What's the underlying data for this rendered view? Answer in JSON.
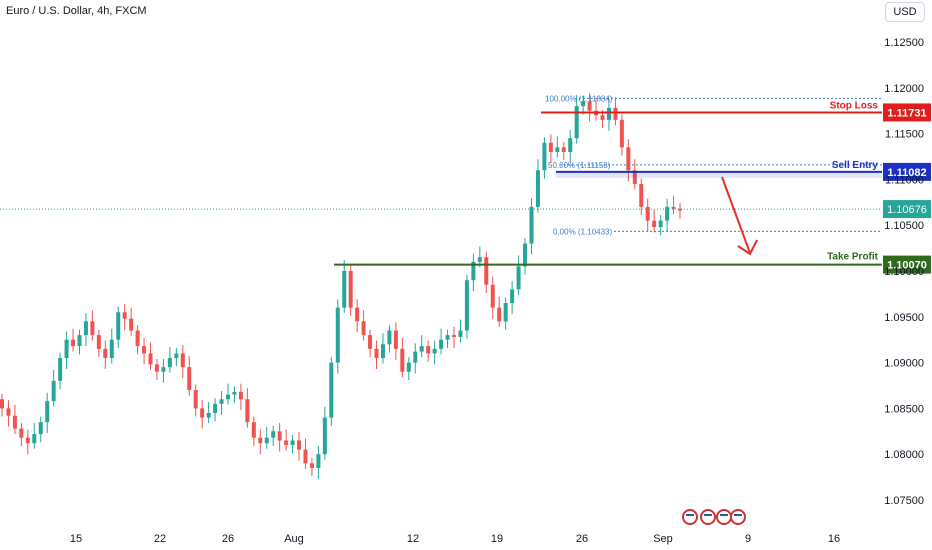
{
  "header": {
    "symbol_title": "Euro / U.S. Dollar, 4h, FXCM",
    "currency_button": "USD"
  },
  "chart_data": {
    "type": "candlestick",
    "title": "Euro / U.S. Dollar, 4h, FXCM",
    "ylim": [
      1.0725,
      1.1275
    ],
    "y_ticks": [
      "1.12500",
      "1.12000",
      "1.11500",
      "1.11000",
      "1.10500",
      "1.10000",
      "1.09500",
      "1.09000",
      "1.08500",
      "1.08000",
      "1.07500"
    ],
    "x_ticks": [
      "15",
      "22",
      "26",
      "Aug",
      "12",
      "19",
      "26",
      "Sep",
      "9",
      "16"
    ],
    "current_price": "1.10676",
    "levels": {
      "stop_loss": {
        "label": "Stop Loss",
        "price": "1.11731",
        "color": "#e01e1e"
      },
      "sell_entry": {
        "label": "Sell Entry",
        "price": "1.11082",
        "color": "#1b2fc4"
      },
      "take_profit": {
        "label": "Take Profit",
        "price": "1.10070",
        "color": "#2e6b1d"
      }
    },
    "fibonacci": [
      {
        "label": "100.00% (1.11884)",
        "price": 1.11884
      },
      {
        "label": "50.00% (1.11158)",
        "price": 1.11158
      },
      {
        "label": "0.00% (1.10433)",
        "price": 1.10433
      }
    ],
    "closes_approx": [
      1.085,
      1.0842,
      1.0828,
      1.0818,
      1.0812,
      1.0822,
      1.0835,
      1.0858,
      1.088,
      1.0905,
      1.0925,
      1.0918,
      1.093,
      1.0945,
      1.093,
      1.0915,
      1.0905,
      1.0925,
      1.0955,
      1.0948,
      1.0935,
      1.0918,
      1.091,
      1.0898,
      1.089,
      1.0895,
      1.0905,
      1.091,
      1.0895,
      1.087,
      1.085,
      1.084,
      1.0845,
      1.0855,
      1.086,
      1.0865,
      1.0868,
      1.086,
      1.0835,
      1.0818,
      1.0812,
      1.0818,
      1.0825,
      1.0815,
      1.081,
      1.0815,
      1.0805,
      1.079,
      1.0785,
      1.08,
      1.084,
      1.09,
      1.096,
      1.1,
      1.096,
      1.0945,
      1.093,
      1.0915,
      1.0905,
      1.092,
      1.0935,
      1.0915,
      1.089,
      1.09,
      1.0912,
      1.0918,
      1.091,
      1.0915,
      1.0925,
      1.093,
      1.0928,
      1.0935,
      1.099,
      1.101,
      1.1015,
      1.0985,
      1.096,
      1.0945,
      1.0965,
      1.098,
      1.1005,
      1.103,
      1.107,
      1.111,
      1.114,
      1.113,
      1.1135,
      1.113,
      1.1145,
      1.118,
      1.1185,
      1.1175,
      1.117,
      1.1165,
      1.1178,
      1.1165,
      1.1135,
      1.111,
      1.1095,
      1.107,
      1.1055,
      1.1048,
      1.1055,
      1.107,
      1.1068,
      1.1066
    ]
  }
}
